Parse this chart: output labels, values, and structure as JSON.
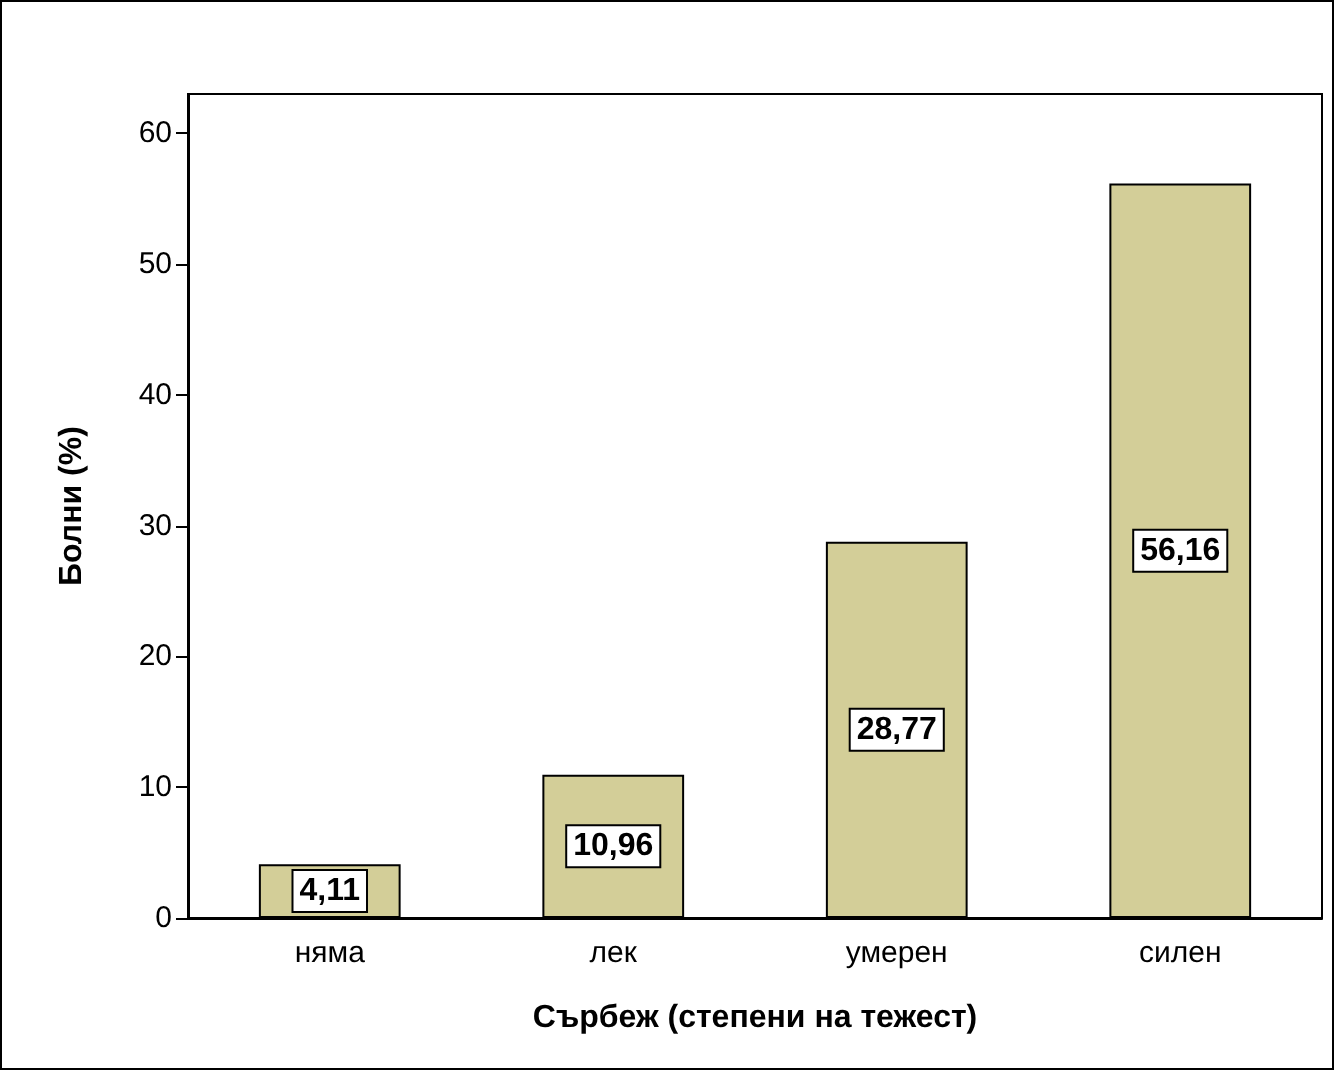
{
  "chart_data": {
    "type": "bar",
    "xlabel": "Сърбеж (степени на тежест)",
    "ylabel": "Болни (%)",
    "categories": [
      "няма",
      "лек",
      "умерен",
      "силен"
    ],
    "values": [
      4.11,
      10.96,
      28.77,
      56.16
    ],
    "value_labels": [
      "4,11",
      "10,96",
      "28,77",
      "56,16"
    ],
    "color": "#d3ce98",
    "ylim": [
      0,
      63
    ],
    "yticks": [
      0,
      10,
      20,
      30,
      40,
      50,
      60
    ],
    "grid": false
  }
}
